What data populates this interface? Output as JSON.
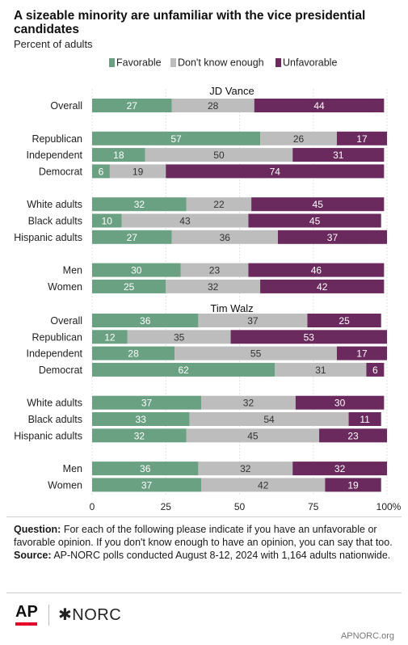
{
  "title": "A sizeable minority are unfamiliar with the vice presidential candidates",
  "subtitle": "Percent of adults",
  "colors": {
    "favorable": "#6aa183",
    "dont_know": "#bdbdbd",
    "unfavorable": "#6b2a5e",
    "label_light": "#ffffff",
    "label_dark": "#333333"
  },
  "chart_data": {
    "type": "bar",
    "orientation": "horizontal",
    "stacked": true,
    "series_names": [
      "Favorable",
      "Don't know enough",
      "Unfavorable"
    ],
    "legend_position": "top",
    "xlim": [
      0,
      100
    ],
    "x_ticks": [
      "0",
      "25",
      "50",
      "75",
      "100%"
    ],
    "panels": [
      {
        "title": "JD Vance",
        "groups": [
          [
            {
              "label": "Overall",
              "values": [
                27,
                28,
                44
              ]
            }
          ],
          [
            {
              "label": "Republican",
              "values": [
                57,
                26,
                17
              ]
            },
            {
              "label": "Independent",
              "values": [
                18,
                50,
                31
              ]
            },
            {
              "label": "Democrat",
              "values": [
                6,
                19,
                74
              ]
            }
          ],
          [
            {
              "label": "White adults",
              "values": [
                32,
                22,
                45
              ]
            },
            {
              "label": "Black adults",
              "values": [
                10,
                43,
                45
              ]
            },
            {
              "label": "Hispanic adults",
              "values": [
                27,
                36,
                37
              ]
            }
          ],
          [
            {
              "label": "Men",
              "values": [
                30,
                23,
                46
              ]
            },
            {
              "label": "Women",
              "values": [
                25,
                32,
                42
              ]
            }
          ]
        ]
      },
      {
        "title": "Tim Walz",
        "groups": [
          [
            {
              "label": "Overall",
              "values": [
                36,
                37,
                25
              ]
            },
            {
              "label": "Republican",
              "values": [
                12,
                35,
                53
              ]
            },
            {
              "label": "Independent",
              "values": [
                28,
                55,
                17
              ]
            },
            {
              "label": "Democrat",
              "values": [
                62,
                31,
                6
              ]
            }
          ],
          [
            {
              "label": "White adults",
              "values": [
                37,
                32,
                30
              ]
            },
            {
              "label": "Black adults",
              "values": [
                33,
                54,
                11
              ]
            },
            {
              "label": "Hispanic adults",
              "values": [
                32,
                45,
                23
              ]
            }
          ],
          [
            {
              "label": "Men",
              "values": [
                36,
                32,
                32
              ]
            },
            {
              "label": "Women",
              "values": [
                37,
                42,
                19
              ]
            }
          ]
        ]
      }
    ]
  },
  "footer": {
    "question_label": "Question:",
    "question_text": "For each of the following please indicate if you have an unfavorable or favorable opinion. If you don't know enough to have an opinion, you can say that too.",
    "source_label": "Source:",
    "source_text": "AP-NORC polls conducted August 8-12, 2024 with 1,164 adults nationwide."
  },
  "logos": {
    "ap": "AP",
    "norc": "NORC",
    "norc_icon": "asterisk-star-icon"
  },
  "site": "APNORC.org"
}
